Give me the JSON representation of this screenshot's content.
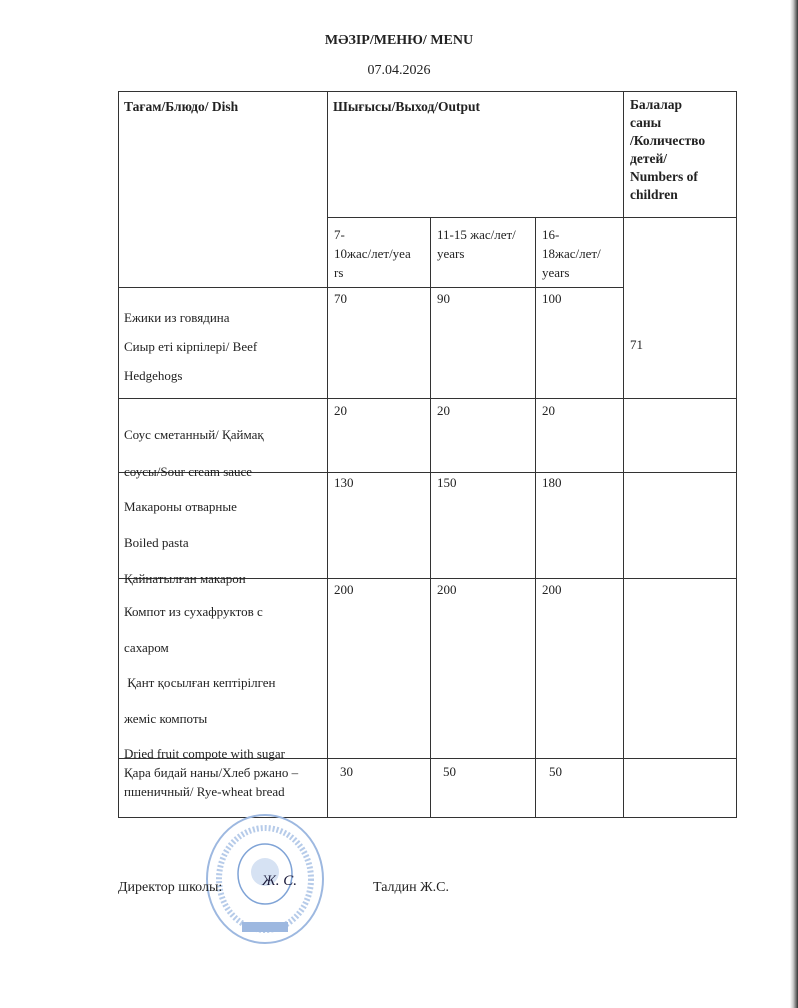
{
  "document": {
    "title": "МӘЗІР/МЕНЮ/ MENU",
    "date": "07.04.2026"
  },
  "table": {
    "headers": {
      "dish": "Тағам/Блюдо/ Dish",
      "output": "Шығысы/Выход/Output",
      "children": [
        "Балалар",
        "саны",
        "/Количество",
        "детей/",
        "Numbers of",
        "children"
      ]
    },
    "age_groups": [
      [
        "7-",
        "10жас/лет/yea",
        "rs"
      ],
      [
        "11-15 жас/лет/",
        "years"
      ],
      [
        "16-",
        "18жас/лет/",
        "years"
      ]
    ],
    "children_count": "71",
    "rows": [
      {
        "dish": [
          "Ежики из говядина",
          "Сиыр еті кірпілері/ Beef",
          "Hedgehogs"
        ],
        "values": [
          "70",
          "90",
          "100"
        ]
      },
      {
        "dish": [
          "Соус сметанный/ Қаймақ",
          "соусы/Sour cream sauce"
        ],
        "values": [
          "20",
          "20",
          "20"
        ]
      },
      {
        "dish": [
          "Макароны отварные",
          "Boiled pasta",
          "Қайнатылған макарон"
        ],
        "values": [
          "130",
          "150",
          "180"
        ]
      },
      {
        "dish": [
          "Компот из сухафруктов с",
          "сахаром",
          " Қант қосылған кептірілген",
          "жеміс компоты",
          "Dried fruit compote with sugar"
        ],
        "values": [
          "200",
          "200",
          "200"
        ]
      },
      {
        "dish": [
          "Қара бидай наны/Хлеб ржано –",
          "пшеничный/ Rye-wheat bread"
        ],
        "values": [
          "30",
          "50",
          "50"
        ]
      }
    ]
  },
  "footer": {
    "director_label": "Директор школы:",
    "director_name": "Талдин Ж.С.",
    "signature": "Ж. С."
  },
  "colors": {
    "stamp": "#7fa3d6",
    "ink": "#222222"
  }
}
